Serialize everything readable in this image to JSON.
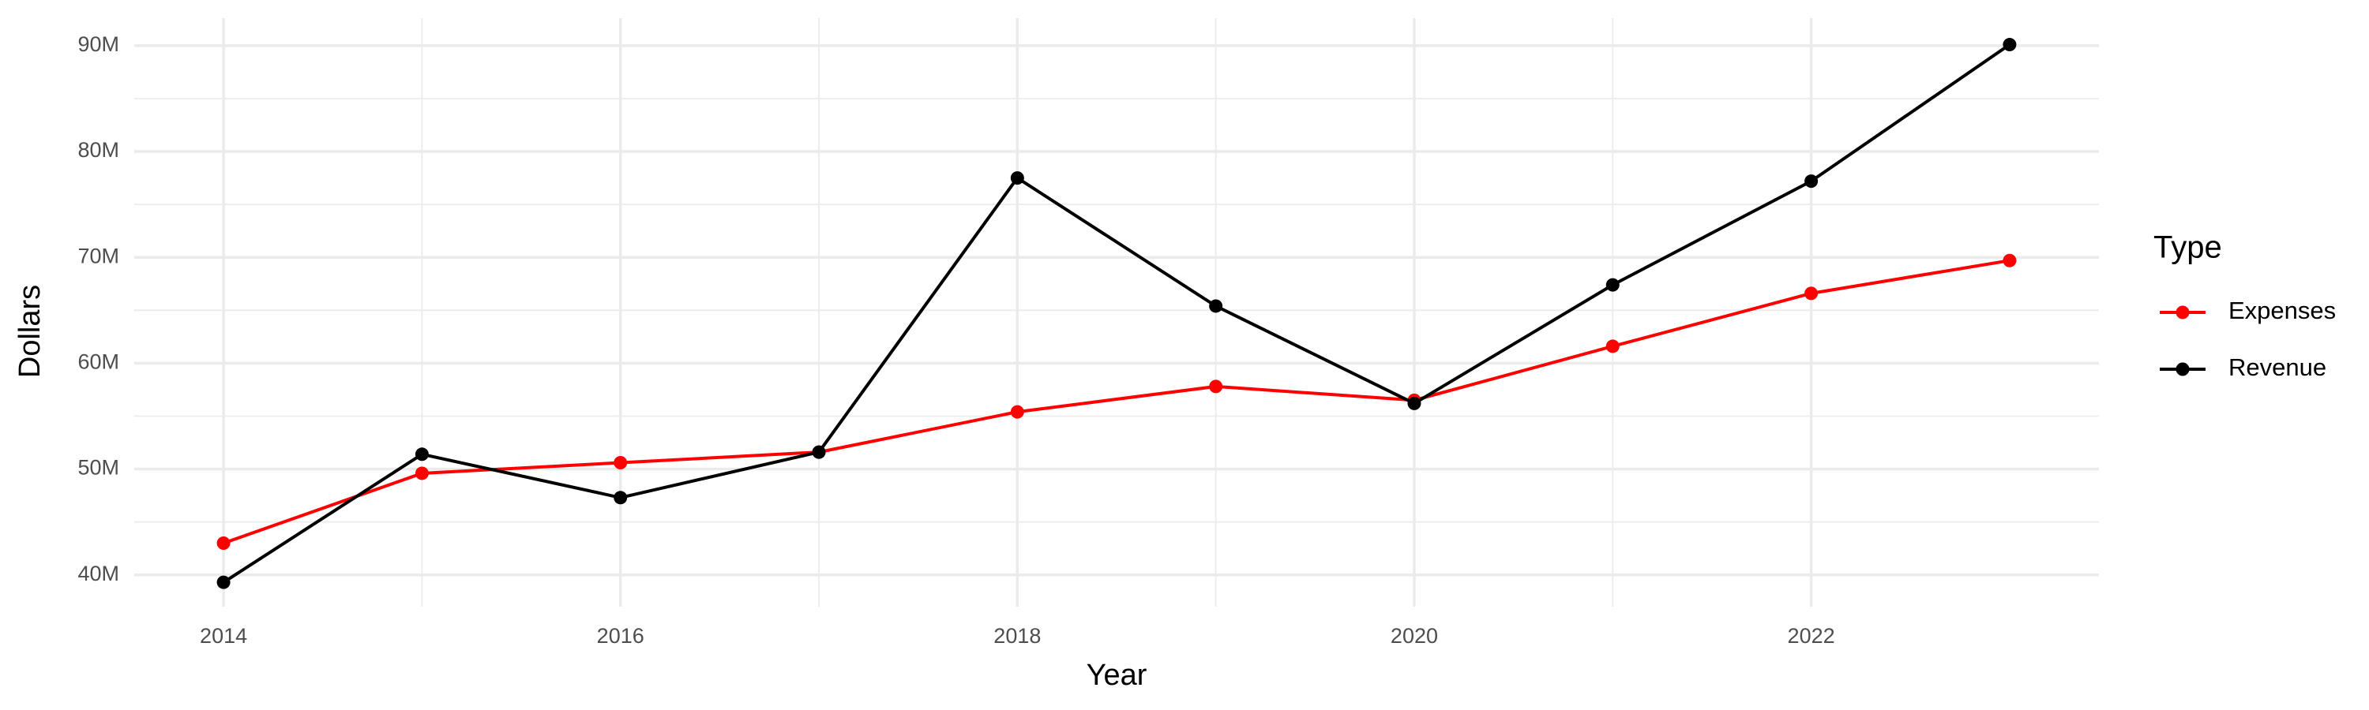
{
  "chart_data": {
    "type": "line",
    "x_label": "Year",
    "y_label": "Dollars",
    "x": [
      2014,
      2015,
      2016,
      2017,
      2018,
      2019,
      2020,
      2021,
      2022,
      2023
    ],
    "series": [
      {
        "name": "Expenses",
        "color": "#ff0000",
        "values": [
          43000000,
          49600000,
          50600000,
          51600000,
          55400000,
          57800000,
          56500000,
          61600000,
          66600000,
          69700000
        ]
      },
      {
        "name": "Revenue",
        "color": "#000000",
        "values": [
          39300000,
          51400000,
          47300000,
          51600000,
          77500000,
          65400000,
          56200000,
          67400000,
          77200000,
          90100000
        ]
      }
    ],
    "xlim": [
      2013.55,
      2023.45
    ],
    "xticks": [
      2014,
      2016,
      2018,
      2020,
      2022
    ],
    "ylim": [
      37000000,
      92600000
    ],
    "yticks": [
      {
        "value": 40000000,
        "label": "40M"
      },
      {
        "value": 50000000,
        "label": "50M"
      },
      {
        "value": 60000000,
        "label": "60M"
      },
      {
        "value": 70000000,
        "label": "70M"
      },
      {
        "value": 80000000,
        "label": "80M"
      },
      {
        "value": 90000000,
        "label": "90M"
      }
    ],
    "grid": true,
    "legend_title": "Type",
    "legend_position": "right"
  }
}
